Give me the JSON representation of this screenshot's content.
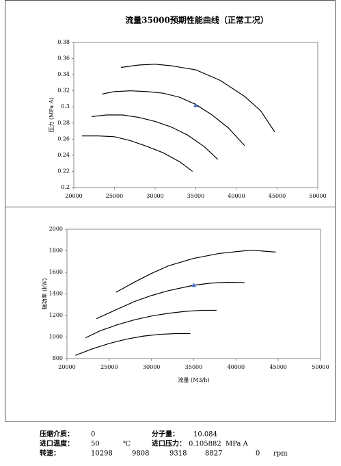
{
  "chart_data": [
    {
      "type": "line",
      "title": "流量35000预期性能曲线（正常工况）",
      "y_label": "压力 (MPa A)",
      "xlim": [
        20000,
        50000
      ],
      "xticks": [
        20000,
        25000,
        30000,
        35000,
        40000,
        45000,
        50000
      ],
      "ylim": [
        0.2,
        0.38
      ],
      "yticks": [
        0.2,
        0.22,
        0.24,
        0.26,
        0.28,
        0.3,
        0.32,
        0.34,
        0.36,
        0.38
      ],
      "grid": false,
      "series": [
        {
          "color": "#000000",
          "x": [
            25800,
            28000,
            30000,
            32000,
            35000,
            38000,
            41000,
            43000,
            44700
          ],
          "values": [
            0.349,
            0.352,
            0.353,
            0.351,
            0.346,
            0.333,
            0.313,
            0.295,
            0.269
          ]
        },
        {
          "color": "#000000",
          "x": [
            23500,
            25000,
            27000,
            29000,
            31000,
            33000,
            35000,
            37000,
            39000,
            41000
          ],
          "values": [
            0.316,
            0.319,
            0.32,
            0.319,
            0.317,
            0.312,
            0.303,
            0.29,
            0.274,
            0.252
          ]
        },
        {
          "color": "#000000",
          "x": [
            22200,
            24000,
            26000,
            28000,
            30000,
            32000,
            34000,
            36000,
            37700
          ],
          "values": [
            0.288,
            0.29,
            0.29,
            0.287,
            0.282,
            0.275,
            0.265,
            0.251,
            0.235
          ]
        },
        {
          "color": "#000000",
          "x": [
            21000,
            23000,
            25000,
            27000,
            29000,
            31000,
            33000,
            34600
          ],
          "values": [
            0.264,
            0.264,
            0.263,
            0.258,
            0.251,
            0.243,
            0.232,
            0.22
          ]
        }
      ],
      "markers": [
        {
          "x": 35000,
          "y": 0.302,
          "color": "#4472c4"
        }
      ]
    },
    {
      "type": "line",
      "y_label": "轴功率 (kW)",
      "x_label": "流量 (M3/h)",
      "xlim": [
        20000,
        50000
      ],
      "xticks": [
        20000,
        25000,
        30000,
        35000,
        40000,
        45000,
        50000
      ],
      "ylim": [
        800,
        2000
      ],
      "yticks": [
        800,
        1000,
        1200,
        1400,
        1600,
        1800,
        2000
      ],
      "grid": false,
      "series": [
        {
          "color": "#000000",
          "x": [
            25800,
            28000,
            30000,
            32000,
            35000,
            38000,
            41000,
            42000,
            44700
          ],
          "values": [
            1415,
            1510,
            1590,
            1660,
            1730,
            1775,
            1800,
            1805,
            1788
          ]
        },
        {
          "color": "#000000",
          "x": [
            23500,
            26000,
            28000,
            30000,
            32000,
            35000,
            37000,
            39000,
            41000
          ],
          "values": [
            1170,
            1260,
            1330,
            1385,
            1430,
            1480,
            1500,
            1508,
            1505
          ]
        },
        {
          "color": "#000000",
          "x": [
            22200,
            24000,
            26000,
            28000,
            30000,
            32000,
            34000,
            36000,
            37700
          ],
          "values": [
            993,
            1060,
            1115,
            1160,
            1195,
            1220,
            1238,
            1248,
            1248
          ]
        },
        {
          "color": "#000000",
          "x": [
            21000,
            23000,
            25000,
            27000,
            29000,
            31000,
            33000,
            34600
          ],
          "values": [
            830,
            890,
            940,
            980,
            1008,
            1025,
            1032,
            1032
          ]
        }
      ],
      "markers": [
        {
          "x": 35000,
          "y": 1480,
          "color": "#4472c4"
        }
      ]
    }
  ],
  "footer": {
    "medium_label": "压缩介质：",
    "medium": "0",
    "mw_label": "分子量：",
    "mw": "10.084",
    "temp_label": "进口温度：",
    "temp": "50",
    "temp_unit": "℃",
    "press_label": "进口压力：",
    "press": "0.105882",
    "press_unit": "MPa A",
    "speed_label": "转速：",
    "speed_1": "10298",
    "speed_2": "9808",
    "speed_3": "9318",
    "speed_4": "8827",
    "speed_5": "0",
    "speed_unit": "rpm"
  }
}
